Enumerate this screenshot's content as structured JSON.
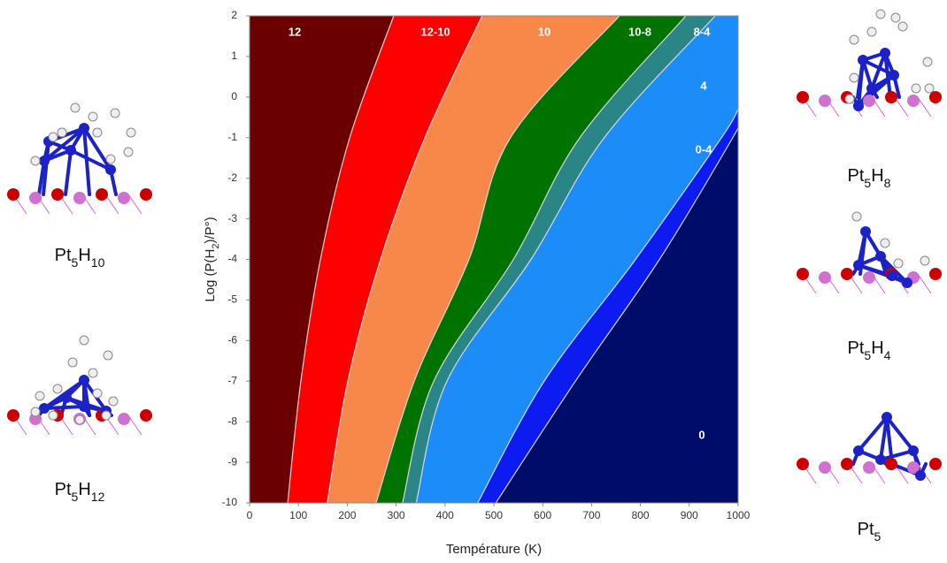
{
  "chart_data": {
    "type": "phase-diagram",
    "xlabel": "Température (K)",
    "ylabel": [
      "Log (P(H",
      "2",
      ")/P°)"
    ],
    "xlim": [
      0,
      1000
    ],
    "ylim": [
      -10,
      2
    ],
    "xticks": [
      0,
      100,
      200,
      300,
      400,
      500,
      600,
      700,
      800,
      900,
      1000
    ],
    "yticks": [
      2,
      1,
      0,
      -1,
      -2,
      -3,
      -4,
      -5,
      -6,
      -7,
      -8,
      -9,
      -10
    ],
    "regions": [
      {
        "name": "12",
        "color": "#6b0000"
      },
      {
        "name": "12-10",
        "color": "#ff0000"
      },
      {
        "name": "10",
        "color": "#f8884a"
      },
      {
        "name": "10-8",
        "color": "#007200"
      },
      {
        "name": "8-4",
        "color": "#2a8686"
      },
      {
        "name": "4",
        "color": "#1c8cf8"
      },
      {
        "name": "0-4",
        "color": "#0c1cf0"
      },
      {
        "name": "0",
        "color": "#000c6a"
      }
    ],
    "boundaries": [
      {
        "x": [
          295,
          205,
          145,
          105,
          78
        ],
        "y": [
          2,
          -1,
          -4,
          -7,
          -10
        ]
      },
      {
        "x": [
          476,
          359,
          268,
          201,
          159
        ],
        "y": [
          2,
          -1,
          -4,
          -7,
          -10
        ]
      },
      {
        "x": [
          757,
          534,
          449,
          337,
          259
        ],
        "y": [
          2,
          -1,
          -4,
          -7,
          -10
        ]
      },
      {
        "x": [
          893,
          676,
          540,
          377,
          313
        ],
        "y": [
          2,
          -1,
          -4,
          -7,
          -10
        ]
      },
      {
        "x": [
          953,
          726,
          576,
          404,
          341
        ],
        "y": [
          2,
          -1,
          -4,
          -7,
          -10
        ]
      },
      {
        "x": [
          1000,
          966,
          790,
          603,
          467
        ],
        "y": [
          -0.3,
          -1,
          -4,
          -7,
          -10
        ]
      },
      {
        "x": [
          1000,
          989,
          839,
          667,
          504
        ],
        "y": [
          -0.66,
          -1,
          -4,
          -7,
          -10
        ]
      }
    ]
  },
  "structures": [
    {
      "formula": [
        "Pt",
        "5",
        "H",
        "10"
      ]
    },
    {
      "formula": [
        "Pt",
        "5",
        "H",
        "12"
      ]
    },
    {
      "formula": [
        "Pt",
        "5",
        "H",
        "8"
      ]
    },
    {
      "formula": [
        "Pt",
        "5",
        "H",
        "4"
      ]
    },
    {
      "formula": [
        "Pt",
        "5"
      ]
    }
  ]
}
